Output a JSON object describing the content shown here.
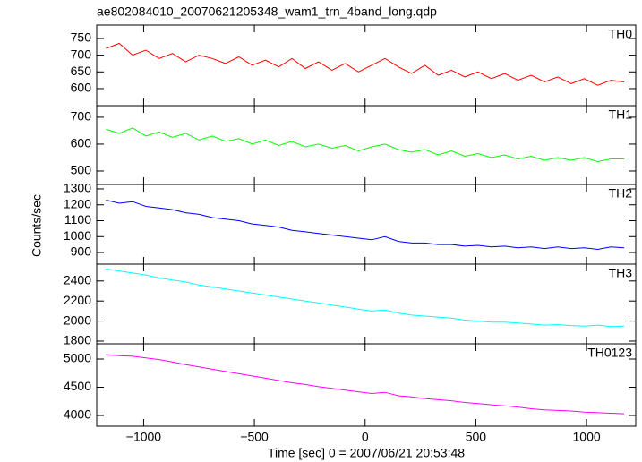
{
  "chart_data": {
    "type": "line",
    "title": "ae802084010_20070621205348_wam1_trn_4band_long.qdp",
    "xlabel": "Time [sec] 0 = 2007/06/21 20:53:48",
    "ylabel": "Counts/sec",
    "xlim": [
      -1212,
      1222
    ],
    "xticks": [
      {
        "value": -1000,
        "label": "−1000"
      },
      {
        "value": -500,
        "label": "−500"
      },
      0,
      500,
      1000
    ],
    "x": [
      -1170,
      -1110,
      -1050,
      -990,
      -930,
      -870,
      -810,
      -750,
      -690,
      -630,
      -570,
      -510,
      -450,
      -390,
      -330,
      -270,
      -210,
      -150,
      -90,
      -30,
      30,
      90,
      150,
      210,
      270,
      330,
      390,
      450,
      510,
      570,
      630,
      690,
      750,
      810,
      870,
      930,
      990,
      1050,
      1110,
      1170
    ],
    "panels": [
      {
        "name": "TH0",
        "color": "#ff0000",
        "ylim": [
          549,
          790
        ],
        "yticks": [
          600,
          650,
          700,
          750
        ],
        "values": [
          720,
          735,
          700,
          715,
          690,
          705,
          680,
          700,
          690,
          675,
          695,
          670,
          685,
          665,
          690,
          660,
          680,
          655,
          675,
          650,
          670,
          690,
          665,
          645,
          670,
          640,
          655,
          635,
          650,
          630,
          645,
          625,
          640,
          620,
          635,
          615,
          630,
          610,
          625,
          620
        ]
      },
      {
        "name": "TH1",
        "color": "#00ff00",
        "ylim": [
          450,
          743
        ],
        "yticks": [
          500,
          600,
          700
        ],
        "values": [
          655,
          640,
          660,
          630,
          645,
          625,
          640,
          615,
          630,
          610,
          620,
          600,
          615,
          595,
          610,
          590,
          600,
          585,
          595,
          575,
          590,
          600,
          580,
          570,
          580,
          560,
          575,
          555,
          565,
          550,
          560,
          545,
          555,
          540,
          550,
          540,
          550,
          535,
          545,
          545
        ]
      },
      {
        "name": "TH2",
        "color": "#0000ff",
        "ylim": [
          827,
          1328
        ],
        "yticks": [
          900,
          1000,
          1100,
          1200,
          1300
        ],
        "values": [
          1230,
          1210,
          1220,
          1190,
          1180,
          1170,
          1150,
          1140,
          1120,
          1110,
          1100,
          1080,
          1070,
          1060,
          1040,
          1030,
          1020,
          1010,
          1000,
          990,
          980,
          1000,
          970,
          960,
          960,
          950,
          950,
          940,
          945,
          935,
          940,
          930,
          935,
          925,
          935,
          925,
          930,
          920,
          935,
          930
        ]
      },
      {
        "name": "TH3",
        "color": "#00ffff",
        "ylim": [
          1773,
          2568
        ],
        "yticks": [
          1800,
          2000,
          2200,
          2400
        ],
        "values": [
          2520,
          2500,
          2480,
          2460,
          2430,
          2410,
          2390,
          2360,
          2340,
          2320,
          2300,
          2280,
          2260,
          2240,
          2220,
          2200,
          2180,
          2160,
          2140,
          2120,
          2100,
          2110,
          2080,
          2060,
          2050,
          2040,
          2030,
          2010,
          2000,
          1990,
          1990,
          1980,
          1970,
          1960,
          1965,
          1955,
          1950,
          1960,
          1945,
          1950
        ]
      },
      {
        "name": "TH0123",
        "color": "#ff00ff",
        "ylim": [
          3810,
          5270
        ],
        "yticks": [
          4000,
          4500,
          5000
        ],
        "values": [
          5080,
          5060,
          5050,
          5020,
          4990,
          4950,
          4900,
          4860,
          4820,
          4780,
          4740,
          4700,
          4660,
          4620,
          4580,
          4550,
          4510,
          4480,
          4450,
          4420,
          4390,
          4410,
          4350,
          4330,
          4300,
          4280,
          4260,
          4230,
          4210,
          4190,
          4170,
          4150,
          4120,
          4100,
          4090,
          4080,
          4060,
          4050,
          4040,
          4030
        ]
      }
    ]
  }
}
